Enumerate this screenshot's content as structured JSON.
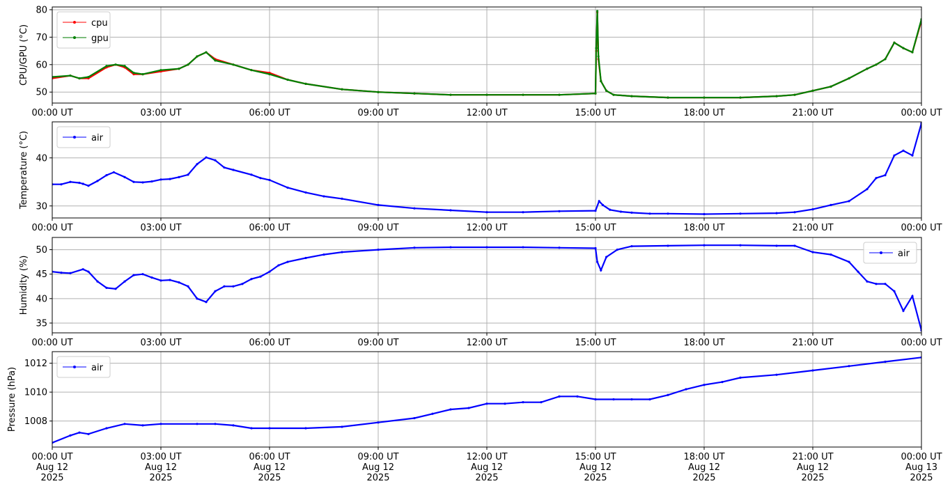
{
  "chart_data": [
    {
      "type": "line",
      "ylabel": "CPU/GPU (°C)",
      "xlabel": "",
      "xlim": [
        "2025-08-12 00:00",
        "2025-08-13 00:00"
      ],
      "ylim": [
        46,
        81
      ],
      "yticks": [
        50,
        60,
        70,
        80
      ],
      "xticks": [
        "00:00 UT",
        "03:00 UT",
        "06:00 UT",
        "09:00 UT",
        "12:00 UT",
        "15:00 UT",
        "18:00 UT",
        "21:00 UT",
        "00:00 UT"
      ],
      "grid": true,
      "legend": "upper left",
      "series": [
        {
          "name": "cpu",
          "color": "#ff0000",
          "x": [
            0,
            0.5,
            0.75,
            1.0,
            1.5,
            1.75,
            2.0,
            2.25,
            2.5,
            3.0,
            3.5,
            3.75,
            4.0,
            4.25,
            4.5,
            5.0,
            5.5,
            6.0,
            6.5,
            7.0,
            8.0,
            9.0,
            10.0,
            11.0,
            12.0,
            13.0,
            14.0,
            15.0,
            15.02,
            15.05,
            15.08,
            15.15,
            15.3,
            15.5,
            16.0,
            17.0,
            18.0,
            19.0,
            20.0,
            20.5,
            21.0,
            21.5,
            22.0,
            22.5,
            22.75,
            23.0,
            23.25,
            23.5,
            23.75,
            24.0
          ],
          "y": [
            55,
            56,
            55,
            55,
            59,
            60,
            59,
            56.5,
            56.5,
            57.5,
            58.5,
            60,
            63,
            64.5,
            62,
            60,
            58,
            57,
            54.5,
            53,
            51,
            50,
            49.5,
            49,
            49,
            49,
            49,
            49.5,
            65,
            79,
            62,
            54,
            50.5,
            49,
            48.5,
            48,
            48,
            48,
            48.5,
            49,
            50.5,
            52,
            55,
            58.5,
            60,
            62,
            68,
            66,
            64.5,
            76
          ]
        },
        {
          "name": "gpu",
          "color": "#008000",
          "x": [
            0,
            0.5,
            0.75,
            1.0,
            1.5,
            1.75,
            2.0,
            2.25,
            2.5,
            3.0,
            3.5,
            3.75,
            4.0,
            4.25,
            4.5,
            5.0,
            5.5,
            6.0,
            6.5,
            7.0,
            8.0,
            9.0,
            10.0,
            11.0,
            12.0,
            13.0,
            14.0,
            15.0,
            15.02,
            15.05,
            15.08,
            15.15,
            15.3,
            15.5,
            16.0,
            17.0,
            18.0,
            19.0,
            20.0,
            20.5,
            21.0,
            21.5,
            22.0,
            22.5,
            22.75,
            23.0,
            23.25,
            23.5,
            23.75,
            24.0
          ],
          "y": [
            55.5,
            56,
            55,
            55.5,
            59.5,
            60,
            59.5,
            57,
            56.5,
            58,
            58.5,
            60,
            63,
            64.5,
            61.5,
            60,
            58,
            56.5,
            54.5,
            53,
            51,
            50,
            49.5,
            49,
            49,
            49,
            49,
            49.5,
            66,
            79.5,
            63,
            54,
            50.5,
            49,
            48.5,
            48,
            48,
            48,
            48.5,
            49,
            50.5,
            52,
            55,
            58.5,
            60,
            62,
            68,
            66,
            64.5,
            76.5
          ]
        }
      ]
    },
    {
      "type": "line",
      "ylabel": "Temperature (°C)",
      "xlabel": "",
      "xlim": [
        "2025-08-12 00:00",
        "2025-08-13 00:00"
      ],
      "ylim": [
        27.5,
        47.5
      ],
      "yticks": [
        30,
        40
      ],
      "xticks": [
        "00:00 UT",
        "03:00 UT",
        "06:00 UT",
        "09:00 UT",
        "12:00 UT",
        "15:00 UT",
        "18:00 UT",
        "21:00 UT",
        "00:00 UT"
      ],
      "grid": true,
      "legend": "upper left",
      "series": [
        {
          "name": "air",
          "color": "#0000ff",
          "x": [
            0,
            0.25,
            0.5,
            0.75,
            0.85,
            1.0,
            1.25,
            1.5,
            1.7,
            2.0,
            2.25,
            2.5,
            2.75,
            3.0,
            3.25,
            3.5,
            3.75,
            4.0,
            4.25,
            4.5,
            4.75,
            5.0,
            5.5,
            5.75,
            6.0,
            6.5,
            7.0,
            7.5,
            8.0,
            9.0,
            10.0,
            11.0,
            12.0,
            13.0,
            14.0,
            15.0,
            15.1,
            15.2,
            15.4,
            15.7,
            16.0,
            16.5,
            17.0,
            18.0,
            19.0,
            20.0,
            20.5,
            21.0,
            21.5,
            22.0,
            22.5,
            22.75,
            23.0,
            23.25,
            23.5,
            23.75,
            24.0
          ],
          "y": [
            34.5,
            34.5,
            35,
            34.8,
            34.6,
            34.2,
            35.2,
            36.4,
            37,
            36,
            35,
            34.9,
            35.1,
            35.5,
            35.6,
            36,
            36.5,
            38.7,
            40.1,
            39.5,
            38,
            37.5,
            36.5,
            35.8,
            35.4,
            33.8,
            32.8,
            32,
            31.5,
            30.2,
            29.5,
            29.1,
            28.7,
            28.7,
            28.9,
            29,
            31,
            30.2,
            29.2,
            28.8,
            28.6,
            28.4,
            28.4,
            28.3,
            28.4,
            28.5,
            28.7,
            29.3,
            30.2,
            31,
            33.5,
            35.8,
            36.4,
            40.5,
            41.5,
            40.5,
            47.2
          ]
        }
      ]
    },
    {
      "type": "line",
      "ylabel": "Humidity (%)",
      "xlabel": "",
      "xlim": [
        "2025-08-12 00:00",
        "2025-08-13 00:00"
      ],
      "ylim": [
        33,
        52.5
      ],
      "yticks": [
        35,
        40,
        45,
        50
      ],
      "xticks": [
        "00:00 UT",
        "03:00 UT",
        "06:00 UT",
        "09:00 UT",
        "12:00 UT",
        "15:00 UT",
        "18:00 UT",
        "21:00 UT",
        "00:00 UT"
      ],
      "grid": true,
      "legend": "upper right",
      "series": [
        {
          "name": "air",
          "color": "#0000ff",
          "x": [
            0,
            0.25,
            0.5,
            0.85,
            1.0,
            1.25,
            1.5,
            1.75,
            2.0,
            2.25,
            2.5,
            2.75,
            3.0,
            3.25,
            3.5,
            3.75,
            4.0,
            4.25,
            4.5,
            4.75,
            5.0,
            5.25,
            5.5,
            5.75,
            6.0,
            6.25,
            6.5,
            7.0,
            7.5,
            8.0,
            9.0,
            10.0,
            11.0,
            12.0,
            13.0,
            14.0,
            15.0,
            15.05,
            15.15,
            15.3,
            15.6,
            16.0,
            17.0,
            18.0,
            19.0,
            20.0,
            20.5,
            21.0,
            21.5,
            22.0,
            22.25,
            22.5,
            22.75,
            23.0,
            23.25,
            23.5,
            23.75,
            24.0
          ],
          "y": [
            45.5,
            45.3,
            45.2,
            46,
            45.5,
            43.5,
            42.2,
            42,
            43.5,
            44.8,
            45,
            44.3,
            43.7,
            43.8,
            43.3,
            42.5,
            40,
            39.3,
            41.5,
            42.5,
            42.5,
            43,
            44,
            44.5,
            45.5,
            46.8,
            47.5,
            48.3,
            49,
            49.5,
            50,
            50.4,
            50.5,
            50.5,
            50.5,
            50.4,
            50.3,
            47.5,
            45.8,
            48.5,
            50,
            50.7,
            50.8,
            50.9,
            50.9,
            50.8,
            50.8,
            49.5,
            49,
            47.5,
            45.5,
            43.5,
            43,
            43,
            41.5,
            37.5,
            40.5,
            33.5
          ]
        }
      ]
    },
    {
      "type": "line",
      "ylabel": "Pressure (hPa)",
      "xlabel": "",
      "xlim": [
        "2025-08-12 00:00",
        "2025-08-13 00:00"
      ],
      "ylim": [
        1006.2,
        1012.8
      ],
      "yticks": [
        1008,
        1010,
        1012
      ],
      "xticks": [
        "00:00 UT\nAug 12\n2025",
        "03:00 UT\nAug 12\n2025",
        "06:00 UT\nAug 12\n2025",
        "09:00 UT\nAug 12\n2025",
        "12:00 UT\nAug 12\n2025",
        "15:00 UT\nAug 12\n2025",
        "18:00 UT\nAug 12\n2025",
        "21:00 UT\nAug 12\n2025",
        "00:00 UT\nAug 13\n2025"
      ],
      "grid": true,
      "legend": "upper left",
      "series": [
        {
          "name": "air",
          "color": "#0000ff",
          "x": [
            0,
            0.5,
            0.75,
            1.0,
            1.5,
            2.0,
            2.5,
            3.0,
            4.0,
            4.5,
            5.0,
            5.5,
            6.0,
            7.0,
            8.0,
            9.0,
            10.0,
            10.5,
            11.0,
            11.5,
            12.0,
            12.5,
            13.0,
            13.5,
            14.0,
            14.5,
            15.0,
            15.5,
            16.0,
            16.5,
            17.0,
            17.5,
            18.0,
            18.5,
            19.0,
            20.0,
            21.0,
            22.0,
            23.0,
            24.0
          ],
          "y": [
            1006.5,
            1007,
            1007.2,
            1007.1,
            1007.5,
            1007.8,
            1007.7,
            1007.8,
            1007.8,
            1007.8,
            1007.7,
            1007.5,
            1007.5,
            1007.5,
            1007.6,
            1007.9,
            1008.2,
            1008.5,
            1008.8,
            1008.9,
            1009.2,
            1009.2,
            1009.3,
            1009.3,
            1009.7,
            1009.7,
            1009.5,
            1009.5,
            1009.5,
            1009.5,
            1009.8,
            1010.2,
            1010.5,
            1010.7,
            1011,
            1011.2,
            1011.5,
            1011.8,
            1012.1,
            1012.4
          ]
        }
      ]
    }
  ]
}
